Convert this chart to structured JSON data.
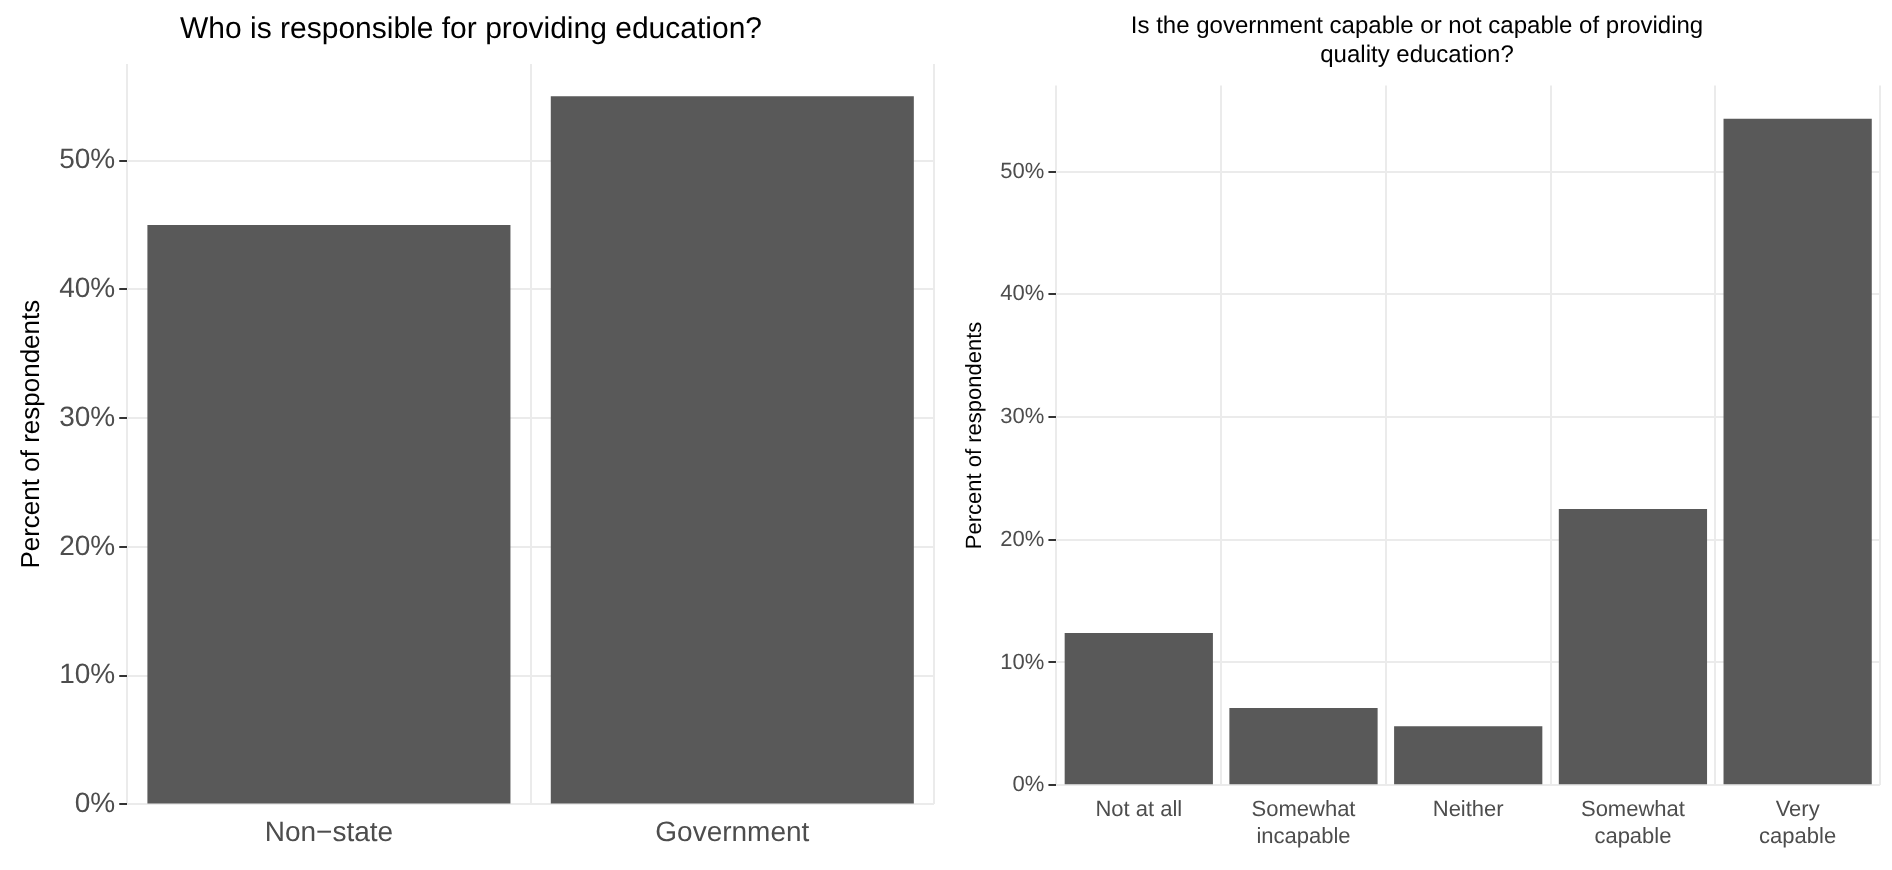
{
  "chart_data": [
    {
      "type": "bar",
      "title": "Who is responsible for providing education?",
      "ylabel": "Percent of respondents",
      "categories": [
        "Non−state",
        "Government"
      ],
      "values": [
        45,
        55
      ],
      "color": "#595959",
      "ylim": [
        0,
        57.5
      ],
      "yticks": [
        {
          "value": 0,
          "label": "0%"
        },
        {
          "value": 10,
          "label": "10%"
        },
        {
          "value": 20,
          "label": "20%"
        },
        {
          "value": 30,
          "label": "30%"
        },
        {
          "value": 40,
          "label": "40%"
        },
        {
          "value": 50,
          "label": "50%"
        }
      ],
      "grid": true,
      "legend": false
    },
    {
      "type": "bar",
      "title": "Is the government capable or not capable of providing quality education?",
      "ylabel": "Percent of respondents",
      "categories": [
        "Not at all",
        "Somewhat incapable",
        "Neither",
        "Somewhat capable",
        "Very capable"
      ],
      "values": [
        12.4,
        6.3,
        4.8,
        22.5,
        54.3
      ],
      "color": "#595959",
      "ylim": [
        0,
        57
      ],
      "yticks": [
        {
          "value": 0,
          "label": "0%"
        },
        {
          "value": 10,
          "label": "10%"
        },
        {
          "value": 20,
          "label": "20%"
        },
        {
          "value": 30,
          "label": "30%"
        },
        {
          "value": 40,
          "label": "40%"
        },
        {
          "value": 50,
          "label": "50%"
        }
      ],
      "grid": true,
      "legend": false
    }
  ]
}
